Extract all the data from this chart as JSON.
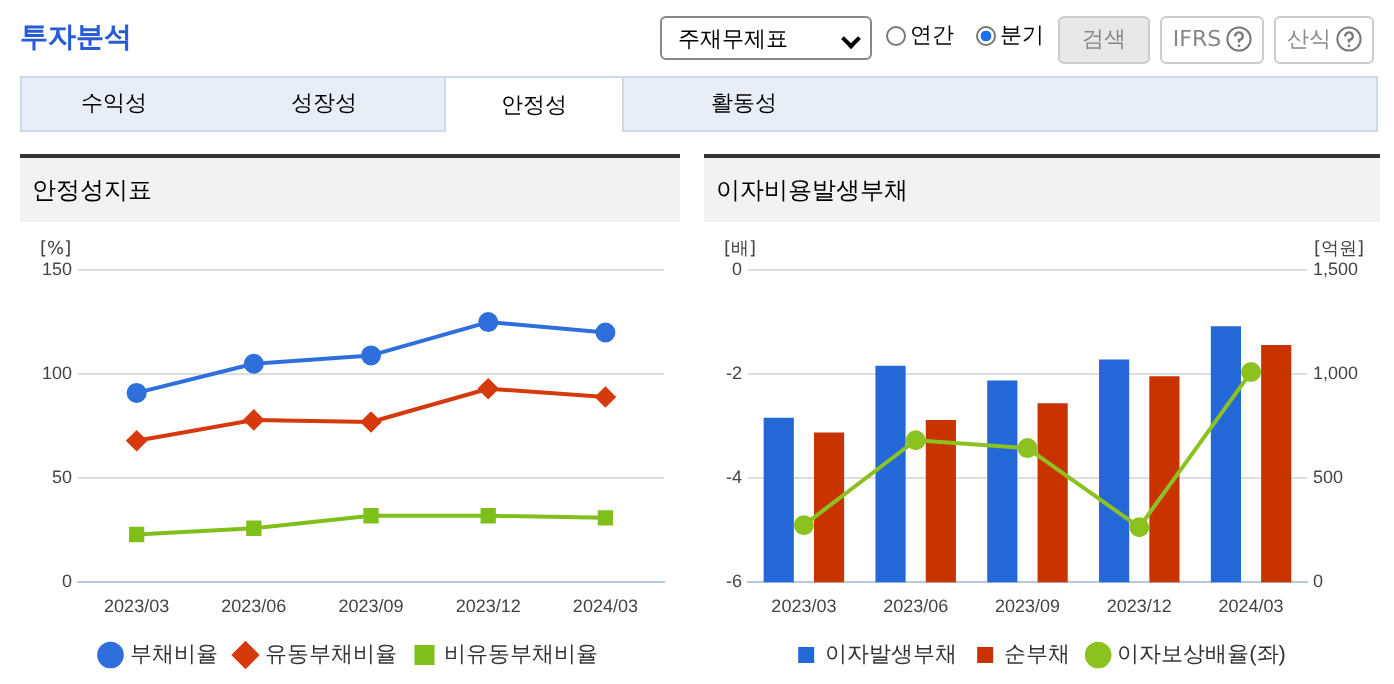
{
  "chart_data": [
    {
      "type": "other",
      "title": "투자분석",
      "annotations": [
        "주재무제표",
        "연간",
        "분기",
        "검색",
        "IFRS",
        "산식",
        "수익성",
        "성장성",
        "안정성",
        "활동성"
      ]
    },
    {
      "type": "line",
      "title": "안정성지표",
      "ylabel": "[%]",
      "categories": [
        "2023/03",
        "2023/06",
        "2023/09",
        "2023/12",
        "2024/03"
      ],
      "ylim": [
        0,
        150
      ],
      "yticks": [
        0,
        50,
        100,
        150
      ],
      "grid": "y",
      "legend": "bottom",
      "line_style": "solid",
      "series": [
        {
          "name": "부채비율",
          "color": "#2e6fdc",
          "marker": "circle",
          "values": [
            91,
            105,
            109,
            125,
            120
          ]
        },
        {
          "name": "유동부채비율",
          "color": "#d63a0c",
          "marker": "diamond",
          "values": [
            68,
            78,
            77,
            93,
            89
          ]
        },
        {
          "name": "비유동부채비율",
          "color": "#7fbf1a",
          "marker": "square",
          "values": [
            23,
            26,
            32,
            32,
            31
          ]
        }
      ]
    },
    {
      "type": "bar",
      "title": "이자비용발생부채",
      "ylabel": "[배]",
      "y2label": "[억원]",
      "categories": [
        "2023/03",
        "2023/06",
        "2023/09",
        "2023/12",
        "2024/03"
      ],
      "ylim": [
        -6,
        0
      ],
      "yticks": [
        -6,
        -4,
        -2,
        0
      ],
      "y2lim": [
        0,
        1500
      ],
      "y2ticks": [
        0,
        500,
        {
          "value": 1000,
          "label": "1,000"
        },
        {
          "value": 1500,
          "label": "1,500"
        }
      ],
      "grid": "y",
      "legend": "bottom",
      "series": [
        {
          "name": "이자발생부채",
          "color": "#2468d8",
          "axis": "y2",
          "values": [
            790,
            1040,
            970,
            1070,
            1230
          ]
        },
        {
          "name": "순부채",
          "color": "#c93300",
          "axis": "y2",
          "values": [
            720,
            780,
            860,
            990,
            1140
          ]
        },
        {
          "name": "이자보상배율(좌)",
          "type": "line",
          "marker": "circle",
          "color": "#8cc21f",
          "values": [
            -4.9,
            -3.27,
            -3.42,
            -4.94,
            -1.96
          ]
        }
      ]
    }
  ]
}
